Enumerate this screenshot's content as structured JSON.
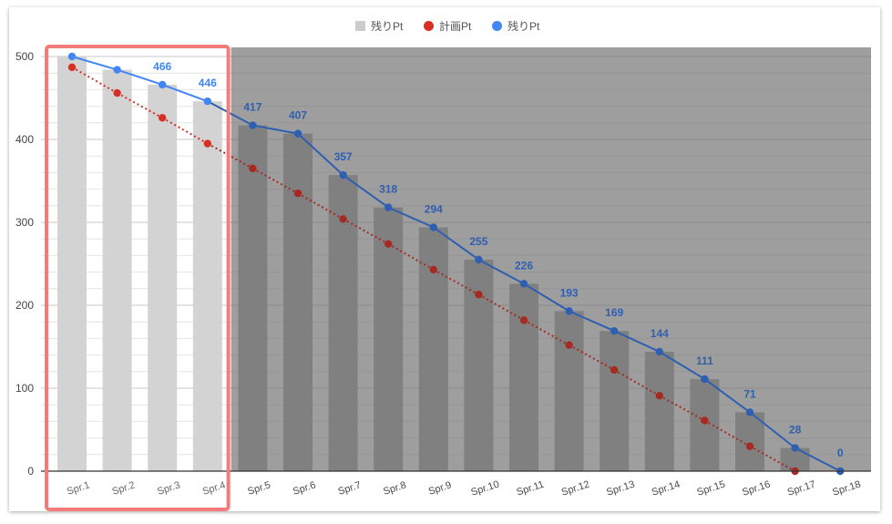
{
  "chart_data": {
    "type": "bar",
    "categories": [
      "Spr.1",
      "Spr.2",
      "Spr.3",
      "Spr.4",
      "Spr.5",
      "Spr.6",
      "Spr.7",
      "Spr.8",
      "Spr.9",
      "Spr.10",
      "Spr.11",
      "Spr.12",
      "Spr.13",
      "Spr.14",
      "Spr.15",
      "Spr.16",
      "Spr.17",
      "Spr.18"
    ],
    "series": [
      {
        "name": "残りPt",
        "kind": "bar",
        "values": [
          500,
          484,
          466,
          446,
          417,
          407,
          357,
          318,
          294,
          255,
          226,
          193,
          169,
          144,
          111,
          71,
          28,
          0
        ]
      },
      {
        "name": "計画Pt",
        "kind": "line-dotted",
        "values": [
          487,
          456,
          426,
          395,
          365,
          335,
          304,
          274,
          243,
          213,
          182,
          152,
          122,
          91,
          61,
          30,
          0,
          null
        ]
      },
      {
        "name": "残りPt",
        "kind": "line-markers",
        "values": [
          500,
          484,
          466,
          446,
          417,
          407,
          357,
          318,
          294,
          255,
          226,
          193,
          169,
          144,
          111,
          71,
          28,
          0
        ]
      }
    ],
    "data_labels": [
      null,
      null,
      466,
      446,
      417,
      407,
      357,
      318,
      294,
      255,
      226,
      193,
      169,
      144,
      111,
      71,
      28,
      0
    ],
    "y_ticks": [
      0,
      100,
      200,
      300,
      400,
      500
    ],
    "ylim": [
      0,
      500
    ],
    "grid": true,
    "legend_position": "top-center",
    "legend": [
      {
        "label": "残りPt",
        "marker": "square",
        "color": "#cccccc"
      },
      {
        "label": "計画Pt",
        "marker": "circle",
        "color": "#d93025"
      },
      {
        "label": "残りPt",
        "marker": "circle",
        "color": "#4285f4"
      }
    ],
    "highlighted_categories": [
      "Spr.1",
      "Spr.2",
      "Spr.3",
      "Spr.4"
    ],
    "colors": {
      "bar_highlight": "#d3d3d3",
      "bar_shaded": "#808080",
      "shade_overlay": "#9e9e9e",
      "plan_line": "#d93025",
      "plan_line_shaded": "#a52a22",
      "actual_line": "#4285f4",
      "actual_line_shaded": "#2f5fb0",
      "highlight_border": "#f47b7b"
    }
  }
}
